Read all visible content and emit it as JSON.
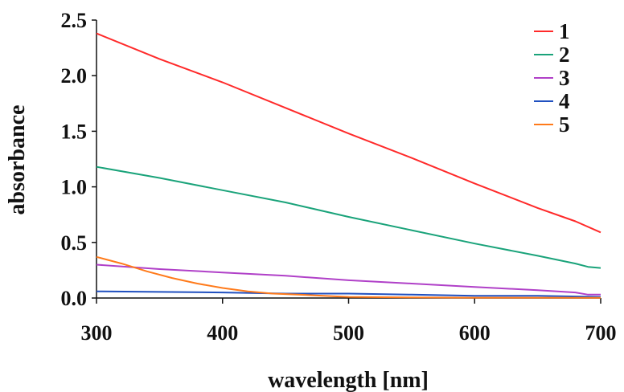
{
  "chart_data": {
    "type": "line",
    "xlabel": "wavelength [nm]",
    "ylabel": "absorbance",
    "xlim": [
      300,
      700
    ],
    "ylim": [
      0,
      2.5
    ],
    "x_ticks": [
      "300",
      "400",
      "500",
      "600",
      "700"
    ],
    "y_ticks": [
      "0.0",
      "0.5",
      "1.0",
      "1.5",
      "2.0",
      "2.5"
    ],
    "grid": false,
    "legend_position": "top-right",
    "series": [
      {
        "name": "1",
        "color": "#ff2a2a",
        "points": [
          [
            300,
            2.38
          ],
          [
            350,
            2.15
          ],
          [
            400,
            1.94
          ],
          [
            450,
            1.71
          ],
          [
            500,
            1.48
          ],
          [
            550,
            1.26
          ],
          [
            600,
            1.03
          ],
          [
            650,
            0.81
          ],
          [
            670,
            0.73
          ],
          [
            680,
            0.69
          ],
          [
            700,
            0.59
          ]
        ]
      },
      {
        "name": "2",
        "color": "#1aa37a",
        "points": [
          [
            300,
            1.18
          ],
          [
            350,
            1.08
          ],
          [
            400,
            0.97
          ],
          [
            450,
            0.86
          ],
          [
            500,
            0.73
          ],
          [
            550,
            0.61
          ],
          [
            600,
            0.49
          ],
          [
            650,
            0.38
          ],
          [
            680,
            0.31
          ],
          [
            690,
            0.28
          ],
          [
            700,
            0.27
          ]
        ]
      },
      {
        "name": "3",
        "color": "#b040c8",
        "points": [
          [
            300,
            0.3
          ],
          [
            350,
            0.26
          ],
          [
            400,
            0.23
          ],
          [
            450,
            0.2
          ],
          [
            500,
            0.16
          ],
          [
            550,
            0.13
          ],
          [
            600,
            0.1
          ],
          [
            650,
            0.07
          ],
          [
            680,
            0.05
          ],
          [
            690,
            0.03
          ],
          [
            700,
            0.03
          ]
        ]
      },
      {
        "name": "4",
        "color": "#2050c0",
        "points": [
          [
            300,
            0.06
          ],
          [
            400,
            0.05
          ],
          [
            450,
            0.04
          ],
          [
            500,
            0.04
          ],
          [
            550,
            0.03
          ],
          [
            600,
            0.02
          ],
          [
            650,
            0.02
          ],
          [
            700,
            0.01
          ]
        ]
      },
      {
        "name": "5",
        "color": "#ff7a1a",
        "points": [
          [
            300,
            0.37
          ],
          [
            320,
            0.31
          ],
          [
            340,
            0.24
          ],
          [
            360,
            0.18
          ],
          [
            380,
            0.13
          ],
          [
            400,
            0.09
          ],
          [
            420,
            0.06
          ],
          [
            440,
            0.04
          ],
          [
            460,
            0.03
          ],
          [
            480,
            0.02
          ],
          [
            500,
            0.01
          ],
          [
            550,
            0.005
          ],
          [
            600,
            0.003
          ],
          [
            700,
            0.002
          ]
        ]
      }
    ]
  }
}
